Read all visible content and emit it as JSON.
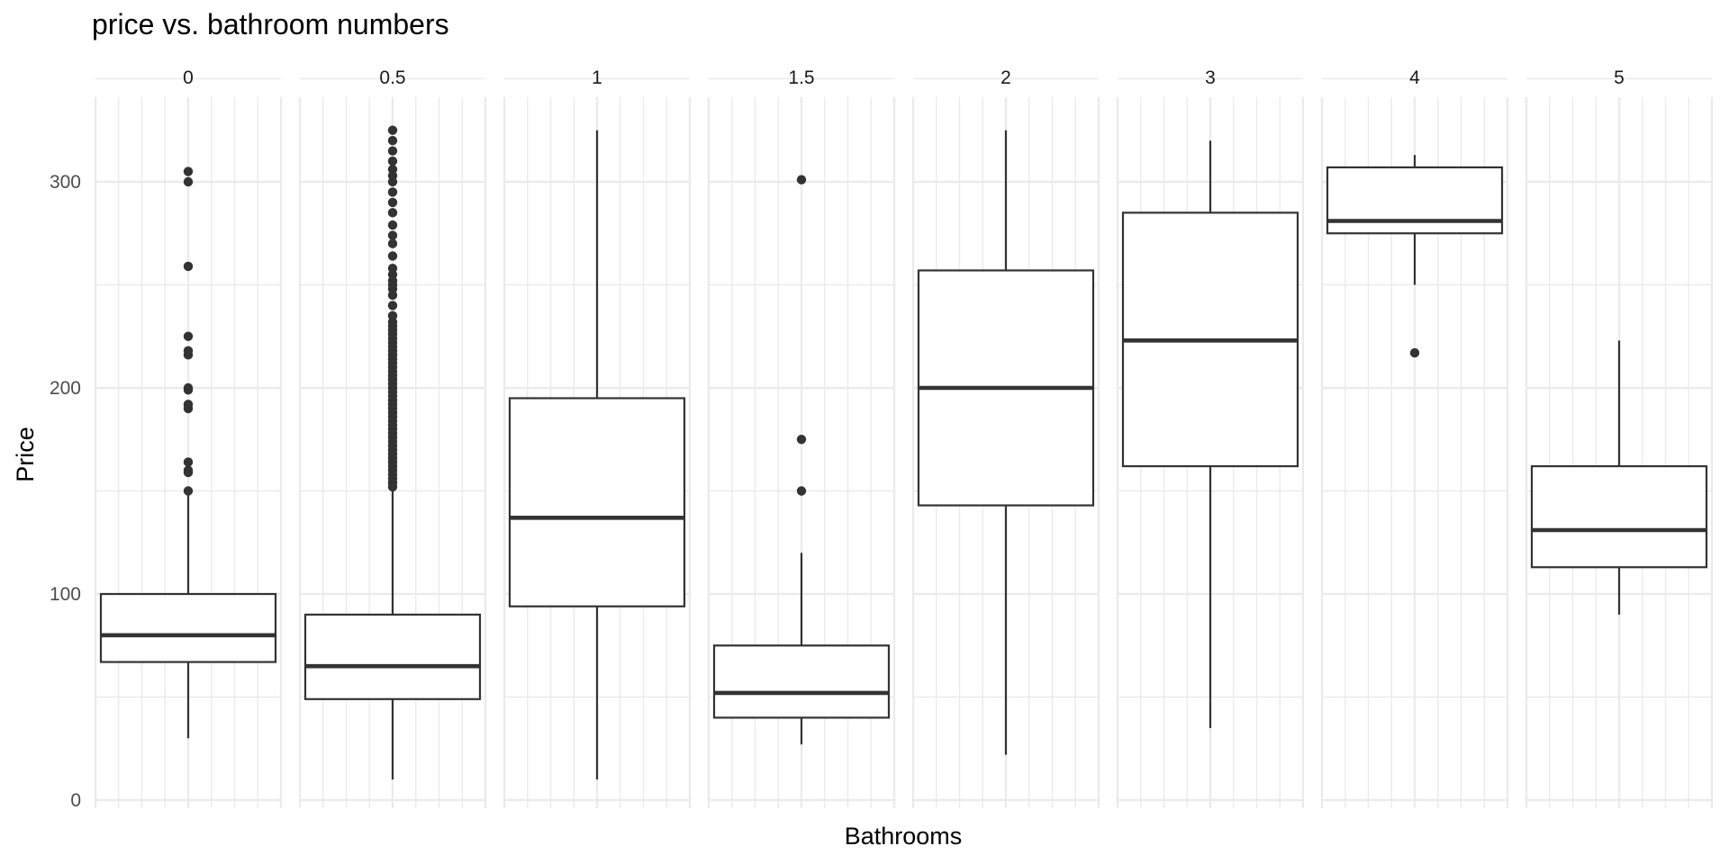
{
  "chart_data": {
    "type": "box",
    "title": "price vs. bathroom numbers",
    "xlabel": "Bathrooms",
    "ylabel": "Price",
    "facet_by": "bathrooms",
    "ylim": [
      -5,
      340
    ],
    "yticks": [
      0,
      100,
      200,
      300
    ],
    "grid": true,
    "legend": "none",
    "box_color": "#333333",
    "grid_color": "#ebebeb",
    "panels": [
      {
        "label": "0",
        "whisker_low": 30,
        "q1": 67,
        "median": 80,
        "q3": 100,
        "whisker_high": 149,
        "outliers": [
          150,
          159,
          160,
          164,
          190,
          192,
          199,
          200,
          216,
          218,
          225,
          259,
          300,
          305
        ]
      },
      {
        "label": "0.5",
        "whisker_low": 10,
        "q1": 49,
        "median": 65,
        "q3": 90,
        "whisker_high": 150,
        "outliers": [
          152,
          154,
          156,
          158,
          160,
          162,
          164,
          166,
          168,
          170,
          172,
          174,
          176,
          178,
          180,
          182,
          184,
          186,
          188,
          190,
          192,
          194,
          196,
          198,
          200,
          202,
          204,
          206,
          208,
          210,
          212,
          214,
          216,
          218,
          220,
          222,
          224,
          226,
          228,
          230,
          232,
          235,
          240,
          245,
          248,
          250,
          252,
          255,
          258,
          264,
          270,
          274,
          279,
          285,
          290,
          295,
          300,
          303,
          306,
          310,
          315,
          320,
          325
        ]
      },
      {
        "label": "1",
        "whisker_low": 10,
        "q1": 94,
        "median": 137,
        "q3": 195,
        "whisker_high": 325,
        "outliers": []
      },
      {
        "label": "1.5",
        "whisker_low": 27,
        "q1": 40,
        "median": 52,
        "q3": 75,
        "whisker_high": 120,
        "outliers": [
          150,
          175,
          301
        ]
      },
      {
        "label": "2",
        "whisker_low": 22,
        "q1": 143,
        "median": 200,
        "q3": 257,
        "whisker_high": 325,
        "outliers": []
      },
      {
        "label": "3",
        "whisker_low": 35,
        "q1": 162,
        "median": 223,
        "q3": 285,
        "whisker_high": 320,
        "outliers": []
      },
      {
        "label": "4",
        "whisker_low": 250,
        "q1": 275,
        "median": 281,
        "q3": 307,
        "whisker_high": 313,
        "outliers": [
          217
        ]
      },
      {
        "label": "5",
        "whisker_low": 90,
        "q1": 113,
        "median": 131,
        "q3": 162,
        "whisker_high": 223,
        "outliers": []
      }
    ]
  }
}
